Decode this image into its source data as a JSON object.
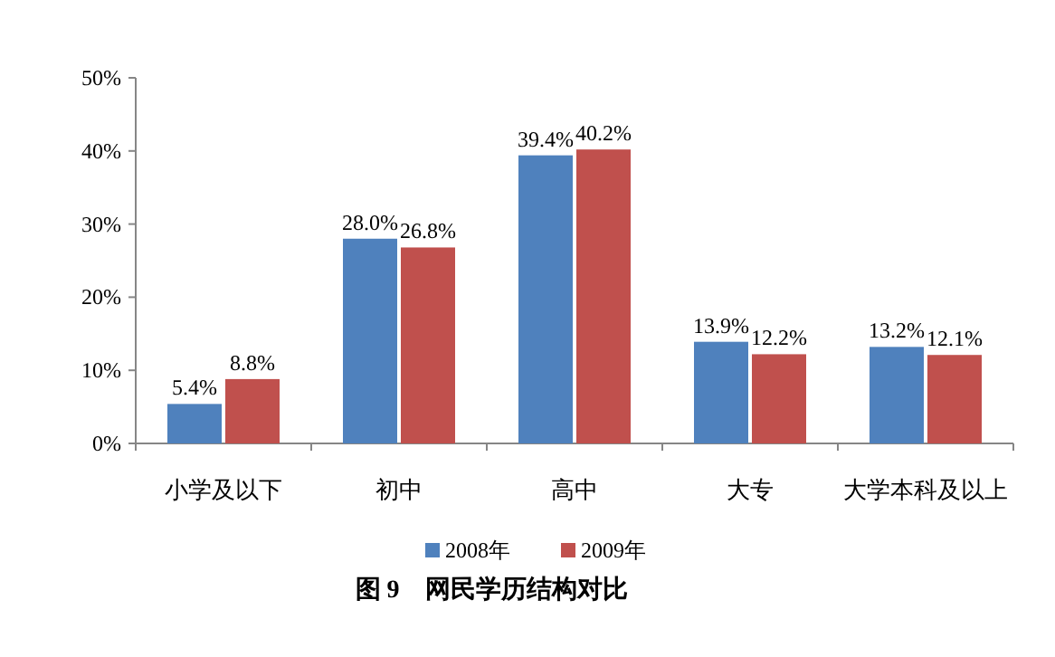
{
  "chart_data": {
    "type": "bar",
    "title": "图 9　网民学历结构对比",
    "categories": [
      "小学及以下",
      "初中",
      "高中",
      "大专",
      "大学本科及以上"
    ],
    "series": [
      {
        "name": "2008年",
        "color": "#4f81bd",
        "values": [
          5.4,
          28.0,
          39.4,
          13.9,
          13.2
        ],
        "value_labels": [
          "5.4%",
          "28.0%",
          "39.4%",
          "13.9%",
          "13.2%"
        ]
      },
      {
        "name": "2009年",
        "color": "#c0504d",
        "values": [
          8.8,
          26.8,
          40.2,
          12.2,
          12.1
        ],
        "value_labels": [
          "8.8%",
          "26.8%",
          "40.2%",
          "12.2%",
          "12.1%"
        ]
      }
    ],
    "ylim": [
      0,
      50
    ],
    "yticks": [
      {
        "value": 0,
        "label": "0%"
      },
      {
        "value": 10,
        "label": "10%"
      },
      {
        "value": 20,
        "label": "20%"
      },
      {
        "value": 30,
        "label": "30%"
      },
      {
        "value": 40,
        "label": "40%"
      },
      {
        "value": 50,
        "label": "50%"
      }
    ],
    "grid": false,
    "legend": "bottom"
  }
}
